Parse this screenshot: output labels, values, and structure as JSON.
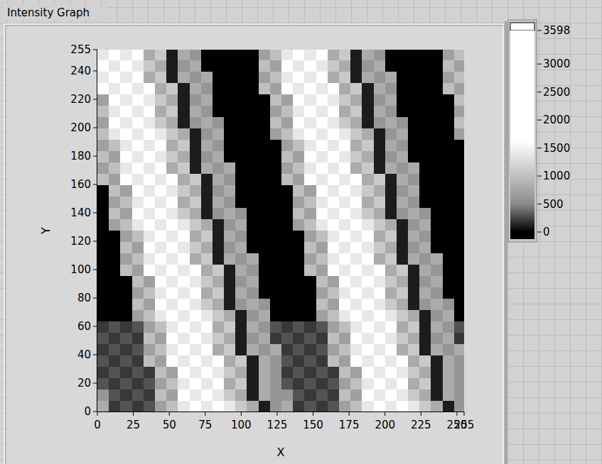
{
  "chart_data": {
    "type": "heatmap",
    "title": "Intensity Graph",
    "x_label": "X",
    "y_label": "Y",
    "xlim": [
      0,
      255
    ],
    "ylim": [
      0,
      255
    ],
    "xticks": [
      0,
      25,
      50,
      75,
      100,
      125,
      150,
      175,
      200,
      225,
      250,
      255
    ],
    "yticks": [
      0,
      20,
      40,
      60,
      80,
      100,
      120,
      140,
      160,
      180,
      200,
      220,
      240,
      255
    ],
    "x_bins": [
      0,
      8,
      16,
      24,
      32,
      40,
      48,
      56,
      64,
      72,
      80,
      88,
      96,
      104,
      112,
      120,
      128,
      136,
      144,
      152,
      160,
      168,
      176,
      184,
      192,
      200,
      208,
      216,
      224,
      232,
      240,
      248,
      256
    ],
    "y_bins": [
      0,
      8,
      16,
      24,
      32,
      40,
      48,
      56,
      64,
      72,
      80,
      88,
      96,
      104,
      112,
      120,
      128,
      136,
      144,
      152,
      160,
      168,
      176,
      184,
      192,
      200,
      208,
      216,
      224,
      232,
      240,
      248,
      256
    ],
    "colorbar": {
      "range": [
        0,
        3598
      ],
      "ticks": [
        0,
        500,
        1000,
        1500,
        2000,
        2500,
        3000,
        3598
      ]
    },
    "cells": [
      [
        800,
        200,
        300,
        200,
        300,
        700,
        1000,
        1400,
        1900,
        1400,
        1900,
        1400,
        1100,
        800,
        100,
        600,
        800,
        200,
        300,
        200,
        300,
        700,
        1000,
        1400,
        1900,
        1400,
        1900,
        1400,
        1100,
        800,
        100,
        600
      ],
      [
        600,
        300,
        200,
        300,
        200,
        1000,
        700,
        1900,
        1400,
        1900,
        1400,
        1100,
        800,
        100,
        800,
        600,
        600,
        300,
        200,
        300,
        200,
        1000,
        700,
        1900,
        1400,
        1900,
        1400,
        1100,
        800,
        100,
        800,
        600
      ],
      [
        300,
        200,
        300,
        200,
        300,
        700,
        1000,
        1400,
        1900,
        1400,
        1900,
        800,
        1100,
        100,
        800,
        600,
        300,
        200,
        300,
        200,
        300,
        700,
        1000,
        1400,
        1900,
        1400,
        1900,
        800,
        1100,
        100,
        800,
        600
      ],
      [
        200,
        300,
        200,
        300,
        200,
        1000,
        700,
        1900,
        1400,
        1900,
        1400,
        1100,
        800,
        100,
        800,
        600,
        200,
        300,
        200,
        300,
        200,
        1000,
        700,
        1900,
        1400,
        1900,
        1400,
        1100,
        800,
        100,
        800,
        600
      ],
      [
        300,
        200,
        300,
        200,
        1000,
        700,
        1900,
        1400,
        1900,
        1400,
        1900,
        800,
        1100,
        100,
        800,
        600,
        300,
        200,
        300,
        200,
        1000,
        700,
        1900,
        1400,
        1900,
        1400,
        1900,
        800,
        1100,
        100,
        800,
        600
      ],
      [
        200,
        300,
        200,
        300,
        700,
        1000,
        1400,
        1900,
        1400,
        1900,
        800,
        1100,
        100,
        800,
        600,
        800,
        200,
        300,
        200,
        300,
        700,
        1000,
        1400,
        1900,
        1400,
        1900,
        800,
        1100,
        100,
        800,
        600,
        800
      ],
      [
        300,
        200,
        300,
        200,
        1000,
        700,
        1900,
        1400,
        1900,
        1400,
        1100,
        800,
        100,
        600,
        800,
        200,
        300,
        200,
        300,
        200,
        1000,
        700,
        1900,
        1400,
        1900,
        1400,
        1100,
        800,
        100,
        600,
        800,
        200
      ],
      [
        200,
        300,
        200,
        300,
        700,
        1000,
        1400,
        1900,
        1400,
        1900,
        800,
        1100,
        100,
        800,
        600,
        300,
        200,
        300,
        200,
        300,
        700,
        1000,
        1400,
        1900,
        1400,
        1900,
        800,
        1100,
        100,
        800,
        600,
        300
      ],
      [
        0,
        0,
        0,
        700,
        1000,
        1400,
        1900,
        1400,
        1900,
        1400,
        1100,
        800,
        100,
        600,
        800,
        0,
        0,
        0,
        0,
        700,
        1000,
        1400,
        1900,
        1400,
        1900,
        1400,
        1100,
        800,
        100,
        600,
        800,
        0
      ],
      [
        0,
        0,
        0,
        1000,
        700,
        1900,
        1400,
        1900,
        1400,
        1100,
        800,
        100,
        600,
        800,
        600,
        0,
        0,
        0,
        0,
        1000,
        700,
        1900,
        1400,
        1900,
        1400,
        1100,
        800,
        100,
        600,
        800,
        600,
        0
      ],
      [
        0,
        0,
        0,
        700,
        1000,
        1400,
        1900,
        1400,
        1900,
        800,
        1100,
        100,
        800,
        600,
        0,
        0,
        0,
        0,
        0,
        700,
        1000,
        1400,
        1900,
        1400,
        1900,
        800,
        1100,
        100,
        800,
        600,
        0,
        0
      ],
      [
        0,
        0,
        0,
        1000,
        700,
        1900,
        1400,
        1900,
        1400,
        1100,
        800,
        100,
        600,
        800,
        0,
        0,
        0,
        0,
        0,
        1000,
        700,
        1900,
        1400,
        1900,
        1400,
        1100,
        800,
        100,
        600,
        800,
        0,
        0
      ],
      [
        0,
        0,
        1000,
        700,
        1900,
        1400,
        1900,
        1400,
        1900,
        800,
        1100,
        100,
        800,
        600,
        0,
        0,
        0,
        0,
        1000,
        700,
        1900,
        1400,
        1900,
        1400,
        1900,
        800,
        1100,
        100,
        800,
        600,
        0,
        0
      ],
      [
        0,
        0,
        700,
        1000,
        1400,
        1900,
        1400,
        1900,
        800,
        1100,
        100,
        800,
        600,
        800,
        0,
        0,
        0,
        0,
        700,
        1000,
        1400,
        1900,
        1400,
        1900,
        800,
        1100,
        100,
        800,
        600,
        800,
        0,
        0
      ],
      [
        0,
        0,
        1000,
        700,
        1900,
        1400,
        1900,
        1400,
        1100,
        800,
        100,
        600,
        800,
        0,
        0,
        0,
        0,
        0,
        1000,
        700,
        1900,
        1400,
        1900,
        1400,
        1100,
        800,
        100,
        600,
        800,
        0,
        0,
        0
      ],
      [
        0,
        0,
        700,
        1000,
        1400,
        1900,
        1400,
        1900,
        800,
        1100,
        100,
        800,
        600,
        0,
        0,
        0,
        0,
        0,
        700,
        1000,
        1400,
        1900,
        1400,
        1900,
        800,
        1100,
        100,
        800,
        600,
        0,
        0,
        0
      ],
      [
        0,
        700,
        1000,
        1400,
        1900,
        1400,
        1900,
        1400,
        1100,
        800,
        100,
        600,
        800,
        0,
        0,
        0,
        0,
        700,
        1000,
        1400,
        1900,
        1400,
        1900,
        1400,
        1100,
        800,
        100,
        600,
        800,
        0,
        0,
        0
      ],
      [
        0,
        1000,
        700,
        1900,
        1400,
        1900,
        1400,
        1100,
        800,
        100,
        600,
        800,
        600,
        0,
        0,
        0,
        0,
        1000,
        700,
        1900,
        1400,
        1900,
        1400,
        1100,
        800,
        100,
        600,
        800,
        600,
        0,
        0,
        0
      ],
      [
        0,
        700,
        1000,
        1400,
        1900,
        1400,
        1900,
        800,
        1100,
        100,
        800,
        600,
        0,
        0,
        0,
        0,
        0,
        700,
        1000,
        1400,
        1900,
        1400,
        1900,
        800,
        1100,
        100,
        800,
        600,
        0,
        0,
        0,
        0
      ],
      [
        0,
        1000,
        700,
        1900,
        1400,
        1900,
        1400,
        1100,
        800,
        100,
        600,
        800,
        0,
        0,
        0,
        0,
        0,
        1000,
        700,
        1900,
        1400,
        1900,
        1400,
        1100,
        800,
        100,
        600,
        800,
        0,
        0,
        0,
        0
      ],
      [
        1000,
        700,
        1900,
        1400,
        1900,
        1400,
        1900,
        800,
        1100,
        100,
        800,
        600,
        0,
        0,
        0,
        0,
        1000,
        700,
        1900,
        1400,
        1900,
        1400,
        1900,
        800,
        1100,
        100,
        800,
        600,
        0,
        0,
        0,
        0
      ],
      [
        700,
        1000,
        1400,
        1900,
        1400,
        1900,
        800,
        1100,
        100,
        800,
        600,
        800,
        0,
        0,
        0,
        0,
        700,
        1000,
        1400,
        1900,
        1400,
        1900,
        800,
        1100,
        100,
        800,
        600,
        800,
        0,
        0,
        0,
        0
      ],
      [
        1000,
        700,
        1900,
        1400,
        1900,
        1400,
        1100,
        800,
        100,
        600,
        800,
        0,
        0,
        0,
        0,
        0,
        1000,
        700,
        1900,
        1400,
        1900,
        1400,
        1100,
        800,
        100,
        600,
        800,
        0,
        0,
        0,
        0,
        0
      ],
      [
        700,
        1000,
        1400,
        1900,
        1400,
        1900,
        800,
        1100,
        100,
        800,
        600,
        0,
        0,
        0,
        0,
        0,
        700,
        1000,
        1400,
        1900,
        1400,
        1900,
        800,
        1100,
        100,
        800,
        600,
        0,
        0,
        0,
        0,
        0
      ],
      [
        1000,
        1400,
        1900,
        1400,
        1900,
        1400,
        1100,
        800,
        100,
        600,
        800,
        0,
        0,
        0,
        0,
        700,
        1000,
        1400,
        1900,
        1400,
        1900,
        1400,
        1100,
        800,
        100,
        600,
        800,
        0,
        0,
        0,
        0,
        700
      ],
      [
        700,
        1900,
        1400,
        1900,
        1400,
        1100,
        800,
        100,
        600,
        800,
        600,
        0,
        0,
        0,
        0,
        1000,
        700,
        1900,
        1400,
        1900,
        1400,
        1100,
        800,
        100,
        600,
        800,
        600,
        0,
        0,
        0,
        0,
        1000
      ],
      [
        1000,
        1400,
        1900,
        1400,
        1900,
        800,
        1100,
        100,
        800,
        600,
        0,
        0,
        0,
        0,
        0,
        700,
        1000,
        1400,
        1900,
        1400,
        1900,
        800,
        1100,
        100,
        800,
        600,
        0,
        0,
        0,
        0,
        0,
        700
      ],
      [
        700,
        1900,
        1400,
        1900,
        1400,
        1100,
        800,
        100,
        600,
        800,
        0,
        0,
        0,
        0,
        0,
        1000,
        700,
        1900,
        1400,
        1900,
        1400,
        1100,
        800,
        100,
        600,
        800,
        0,
        0,
        0,
        0,
        0,
        1000
      ],
      [
        1900,
        1400,
        1900,
        1400,
        1900,
        800,
        1100,
        100,
        800,
        600,
        0,
        0,
        0,
        0,
        1000,
        700,
        1900,
        1400,
        1900,
        1400,
        1900,
        800,
        1100,
        100,
        800,
        600,
        0,
        0,
        0,
        0,
        1000,
        700
      ],
      [
        1400,
        1900,
        1400,
        1900,
        800,
        1100,
        100,
        800,
        600,
        800,
        0,
        0,
        0,
        0,
        700,
        1000,
        1400,
        1900,
        1400,
        1900,
        800,
        1100,
        100,
        800,
        600,
        800,
        0,
        0,
        0,
        0,
        700,
        1000
      ],
      [
        1900,
        1400,
        1900,
        1400,
        1100,
        800,
        100,
        600,
        800,
        0,
        0,
        0,
        0,
        0,
        1000,
        700,
        1900,
        1400,
        1900,
        1400,
        1100,
        800,
        100,
        600,
        800,
        0,
        0,
        0,
        0,
        0,
        1000,
        700
      ],
      [
        1400,
        1900,
        1400,
        1900,
        800,
        1100,
        100,
        800,
        600,
        0,
        0,
        0,
        0,
        0,
        700,
        1000,
        1400,
        1900,
        1400,
        1900,
        800,
        1100,
        100,
        800,
        600,
        0,
        0,
        0,
        0,
        0,
        700,
        1000
      ]
    ]
  }
}
